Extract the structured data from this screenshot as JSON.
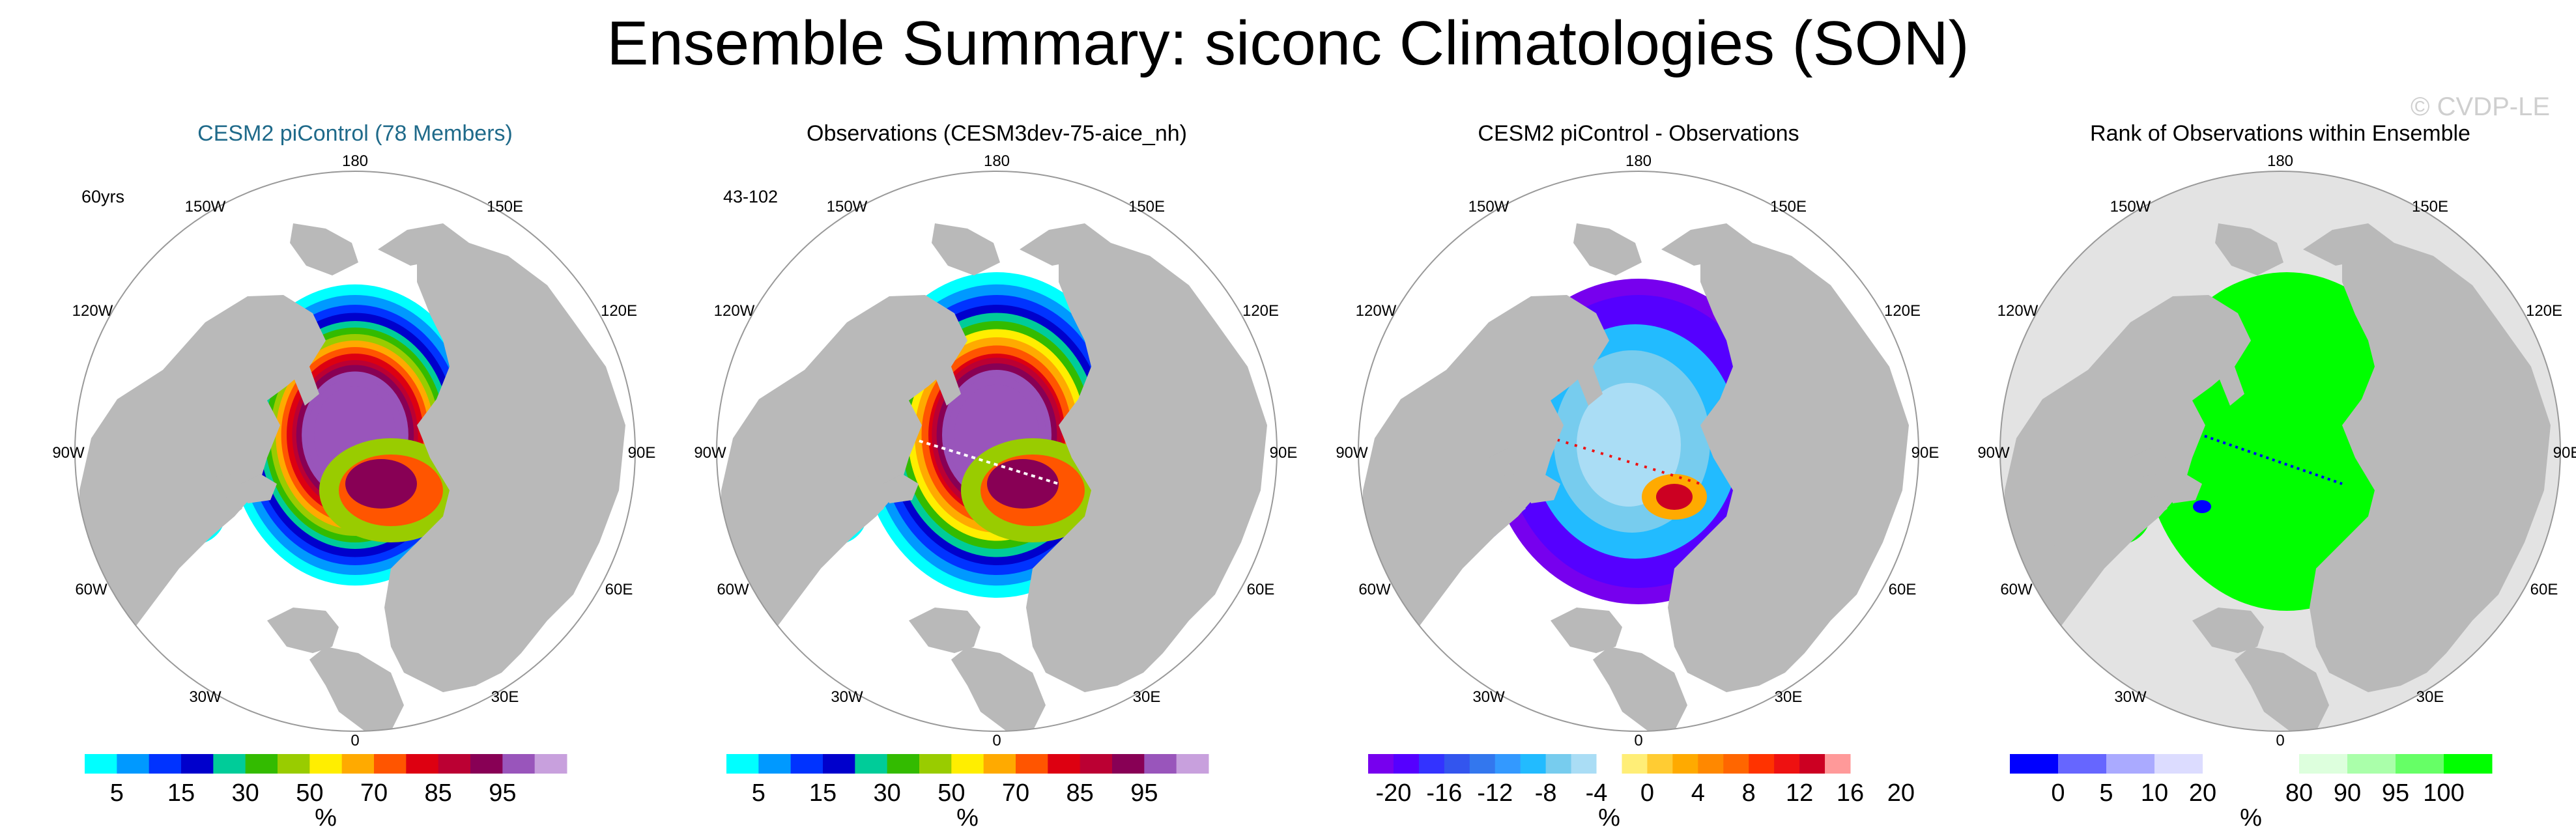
{
  "title": "Ensemble Summary: siconc Climatologies (SON)",
  "watermark": "© CVDP-LE",
  "lon_labels": {
    "top": "180",
    "bottom": "0",
    "ul": "150W",
    "ur": "150E",
    "l1": "120W",
    "r1": "120E",
    "l2": "90W",
    "r2": "90E",
    "l3": "60W",
    "r3": "60E",
    "ll": "30W",
    "lr": "30E"
  },
  "colors": {
    "land": "#b9b9b9",
    "title_blue": "#1f6a8a",
    "palette_ice": [
      "#00ffff",
      "#0099ff",
      "#0033ff",
      "#0000cc",
      "#00cc99",
      "#33bb00",
      "#99cc00",
      "#ffee00",
      "#ffaa00",
      "#ff5500",
      "#dd0011",
      "#bb0033",
      "#880055",
      "#9955bb",
      "#c8a0dd"
    ],
    "palette_diff": [
      "#7700ee",
      "#5500ff",
      "#3333ff",
      "#3355ee",
      "#3377ee",
      "#3399ff",
      "#22bbff",
      "#77ccee",
      "#aaddf5",
      "#ffffff",
      "#ffee77",
      "#ffcc33",
      "#ffaa00",
      "#ff8800",
      "#ff6600",
      "#ff3300",
      "#ee1111",
      "#cc0022",
      "#ff9999"
    ],
    "palette_rank": [
      "#0000ff",
      "#6666ff",
      "#aaaaff",
      "#dcdcff",
      "#ffffff",
      "#ffffff",
      "#ddffdd",
      "#aaffaa",
      "#66ff66",
      "#00ff00"
    ]
  },
  "panels": [
    {
      "title": "CESM2 piControl (78 Members)",
      "period": "60yrs",
      "map_style": "ice_model",
      "units": "%",
      "colorbar_labels": [
        "5",
        "15",
        "30",
        "50",
        "70",
        "85",
        "95"
      ]
    },
    {
      "title": "Observations (CESM3dev-75-aice_nh)",
      "period": "43-102",
      "map_style": "ice_obs",
      "units": "%",
      "colorbar_labels": [
        "5",
        "15",
        "30",
        "50",
        "70",
        "85",
        "95"
      ]
    },
    {
      "title": "CESM2 piControl - Observations",
      "period": "",
      "map_style": "diff",
      "units": "%",
      "colorbar_labels": [
        "-20",
        "-16",
        "-12",
        "-8",
        "-4",
        "0",
        "4",
        "8",
        "12",
        "16",
        "20"
      ]
    },
    {
      "title": "Rank of Observations within Ensemble",
      "period": "",
      "map_style": "rank",
      "units": "%",
      "colorbar_labels": [
        "0",
        "5",
        "10",
        "20",
        "80",
        "90",
        "95",
        "100"
      ]
    }
  ]
}
